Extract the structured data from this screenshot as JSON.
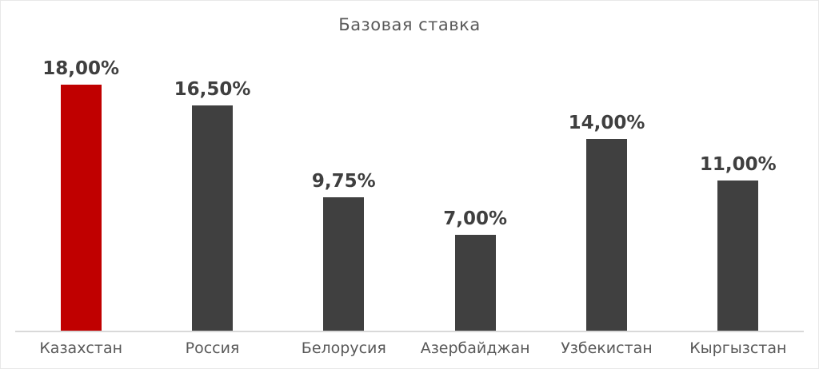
{
  "chart_data": {
    "type": "bar",
    "title": "Базовая ставка",
    "categories": [
      "Казахстан",
      "Россия",
      "Белорусия",
      "Азербайджан",
      "Узбекистан",
      "Кыргызстан"
    ],
    "values": [
      18.0,
      16.5,
      9.75,
      7.0,
      14.0,
      11.0
    ],
    "value_labels": [
      "18,00%",
      "16,50%",
      "9,75%",
      "7,00%",
      "14,00%",
      "11,00%"
    ],
    "highlight_index": 0,
    "highlight_color": "#c00000",
    "bar_color": "#404040",
    "value_label_color": "#3f3f3f",
    "category_label_color": "#595959",
    "axis_line_color": "#d9d9d9",
    "title_color": "#595959",
    "xlabel": "",
    "ylabel": "",
    "ylim": [
      0,
      18
    ],
    "grid": false,
    "legend": false
  }
}
